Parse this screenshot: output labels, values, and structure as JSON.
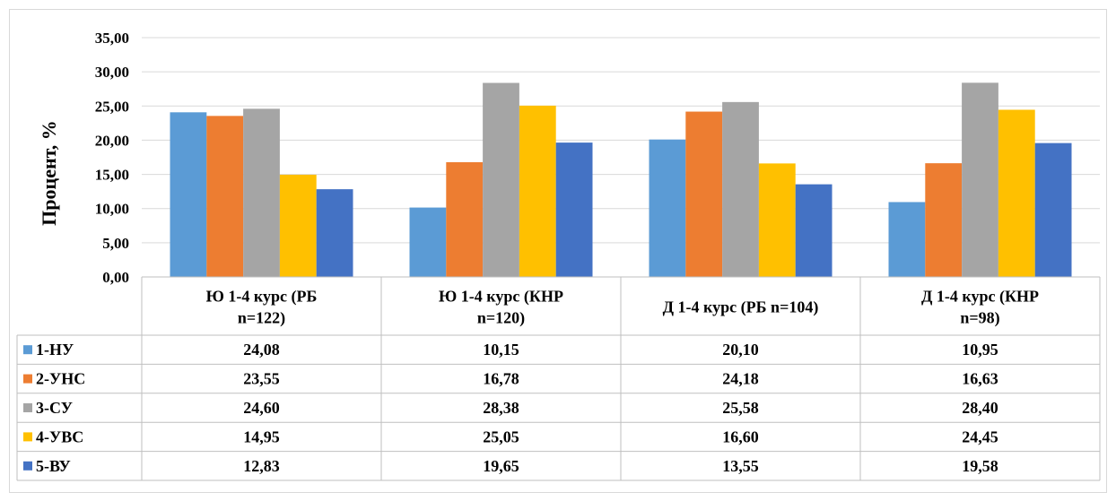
{
  "chart_data": {
    "type": "bar",
    "ylabel": "Процент, %",
    "ylim": [
      0,
      35
    ],
    "yticks": [
      "0,00",
      "5,00",
      "10,00",
      "15,00",
      "20,00",
      "25,00",
      "30,00",
      "35,00"
    ],
    "grid": true,
    "legend": "data-table-left",
    "categories": [
      [
        "Ю 1-4 курс (РБ",
        "n=122)"
      ],
      [
        "Ю 1-4 курс (КНР",
        "n=120)"
      ],
      [
        "Д 1-4 курс (РБ n=104)"
      ],
      [
        "Д 1-4 курс (КНР",
        "n=98)"
      ]
    ],
    "series": [
      {
        "name": "1-НУ",
        "color": "#5b9bd5",
        "values": [
          24.08,
          10.15,
          20.1,
          10.95
        ],
        "labels": [
          "24,08",
          "10,15",
          "20,10",
          "10,95"
        ]
      },
      {
        "name": "2-УНС",
        "color": "#ed7d31",
        "values": [
          23.55,
          16.78,
          24.18,
          16.63
        ],
        "labels": [
          "23,55",
          "16,78",
          "24,18",
          "16,63"
        ]
      },
      {
        "name": "3-СУ",
        "color": "#a5a5a5",
        "values": [
          24.6,
          28.38,
          25.58,
          28.4
        ],
        "labels": [
          "24,60",
          "28,38",
          "25,58",
          "28,40"
        ]
      },
      {
        "name": "4-УВС",
        "color": "#ffc000",
        "values": [
          14.95,
          25.05,
          16.6,
          24.45
        ],
        "labels": [
          "14,95",
          "25,05",
          "16,60",
          "24,45"
        ]
      },
      {
        "name": "5-ВУ",
        "color": "#4472c4",
        "values": [
          12.83,
          19.65,
          13.55,
          19.58
        ],
        "labels": [
          "12,83",
          "19,65",
          "13,55",
          "19,58"
        ]
      }
    ]
  }
}
